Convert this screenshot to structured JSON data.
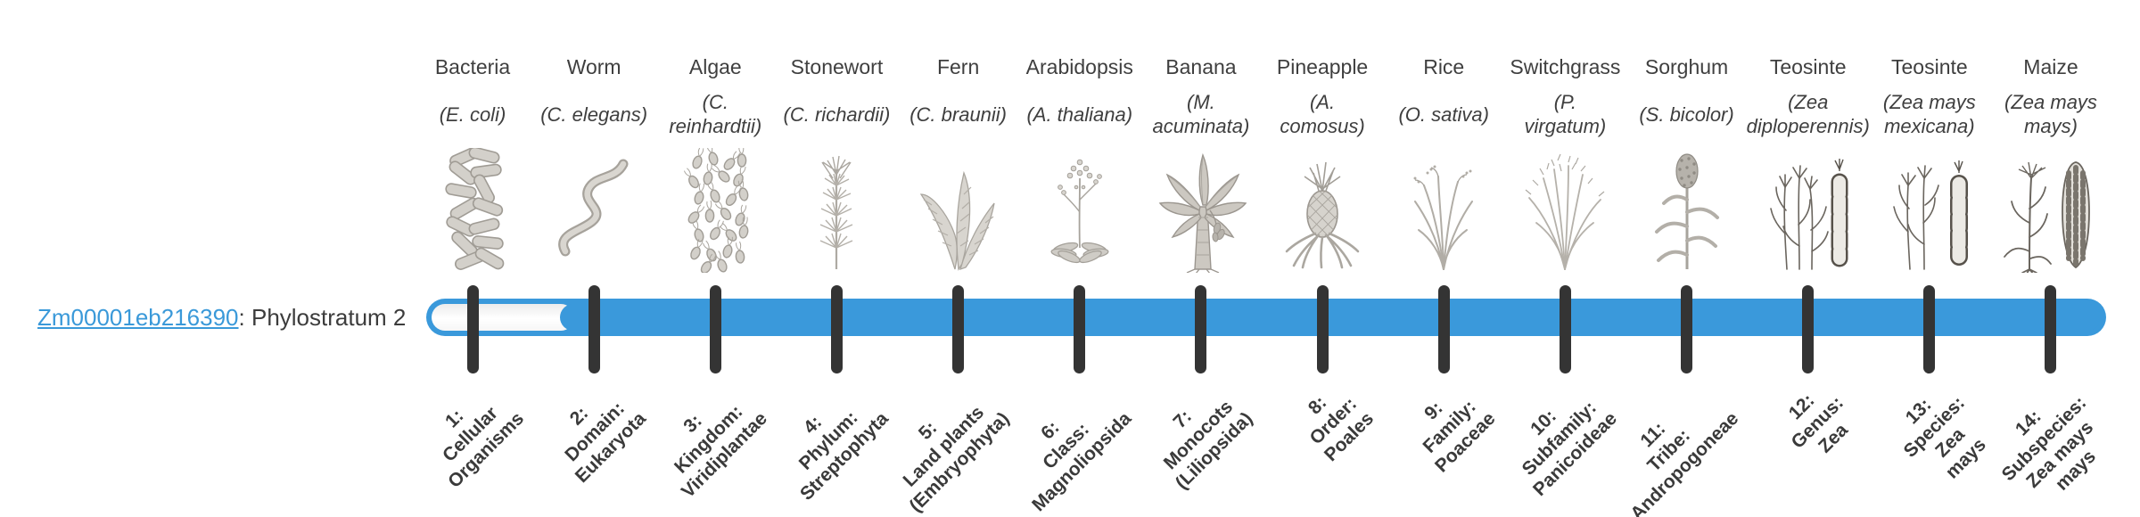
{
  "gene": {
    "id": "Zm00001eb216390",
    "suffix": ": Phylostratum 2",
    "phylostratum": 2
  },
  "bar": {
    "fill_color": "#3a99db",
    "tick_color": "#343434",
    "track_color": "#ffffff",
    "filled_from_stratum": 2,
    "total_strata": 14
  },
  "columns": [
    {
      "name": "Bacteria",
      "sci": "(E. coli)",
      "icon": "bacteria-icon",
      "stratum_label": "1:\nCellular\nOrganisms"
    },
    {
      "name": "Worm",
      "sci": "(C. elegans)",
      "icon": "worm-icon",
      "stratum_label": "2:\nDomain:\nEukaryota"
    },
    {
      "name": "Algae",
      "sci": "(C.\nreinhardtii)",
      "icon": "algae-icon",
      "stratum_label": "3:\nKingdom:\nViridiplantae"
    },
    {
      "name": "Stonewort",
      "sci": "(C. richardii)",
      "icon": "stonewort-icon",
      "stratum_label": "4:\nPhylum:\nStreptophyta"
    },
    {
      "name": "Fern",
      "sci": "(C. braunii)",
      "icon": "fern-icon",
      "stratum_label": "5:\nLand plants\n(Embryophyta)"
    },
    {
      "name": "Arabidopsis",
      "sci": "(A. thaliana)",
      "icon": "arabidopsis-icon",
      "stratum_label": "6:\nClass:\nMagnoliopsida"
    },
    {
      "name": "Banana",
      "sci": "(M.\nacuminata)",
      "icon": "banana-icon",
      "stratum_label": "7:\nMonocots\n(Liliopsida)"
    },
    {
      "name": "Pineapple",
      "sci": "(A.\ncomosus)",
      "icon": "pineapple-icon",
      "stratum_label": "8:\nOrder:\nPoales"
    },
    {
      "name": "Rice",
      "sci": "(O. sativa)",
      "icon": "rice-icon",
      "stratum_label": "9:\nFamily:\nPoaceae"
    },
    {
      "name": "Switchgrass",
      "sci": "(P.\nvirgatum)",
      "icon": "switchgrass-icon",
      "stratum_label": "10:\nSubfamily:\nPanicoideae"
    },
    {
      "name": "Sorghum",
      "sci": "(S. bicolor)",
      "icon": "sorghum-icon",
      "stratum_label": "11:\nTribe:\nAndropogoneae"
    },
    {
      "name": "Teosinte",
      "sci": "(Zea\ndiploperennis)",
      "icon": "teosinte-diplo-icon",
      "stratum_label": "12:\nGenus:\nZea"
    },
    {
      "name": "Teosinte",
      "sci": "(Zea mays\nmexicana)",
      "icon": "teosinte-mex-icon",
      "stratum_label": "13:\nSpecies:\nZea\nmays"
    },
    {
      "name": "Maize",
      "sci": "(Zea mays\nmays)",
      "icon": "maize-icon",
      "stratum_label": "14:\nSubspecies:\nZea mays\nmays"
    }
  ]
}
